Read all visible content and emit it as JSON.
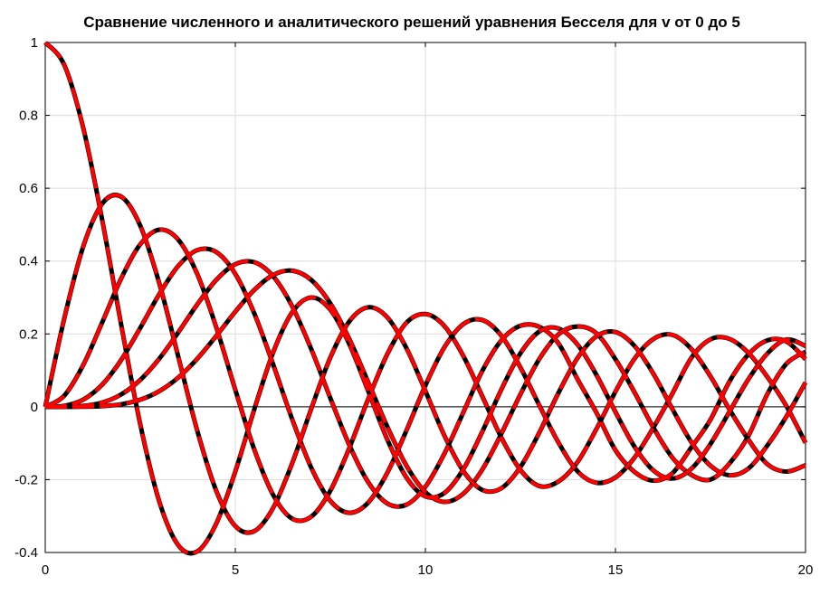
{
  "chart_data": {
    "type": "line",
    "title": "Сравнение численного и аналитического решений уравнения Бесселя для v от 0 до 5",
    "xlabel": "",
    "ylabel": "",
    "xlim": [
      0,
      20
    ],
    "ylim": [
      -0.4,
      1
    ],
    "x_ticks": [
      0,
      5,
      10,
      15,
      20
    ],
    "x_tick_labels": [
      "0",
      "5",
      "10",
      "15",
      "20"
    ],
    "y_ticks": [
      -0.4,
      -0.2,
      0,
      0.2,
      0.4,
      0.6,
      0.8,
      1
    ],
    "y_tick_labels": [
      "-0.4",
      "-0.2",
      "0",
      "0.2",
      "0.4",
      "0.6",
      "0.8",
      "1"
    ],
    "grid": true,
    "zero_line": true,
    "x_step": 0.5,
    "series_styles": {
      "numerical": {
        "color": "#000000",
        "dash": "none"
      },
      "analytical": {
        "color": "#ff0000",
        "dash": "dashed"
      }
    },
    "series": [
      {
        "order": 0,
        "x": [
          0,
          0.5,
          1,
          1.5,
          2,
          2.5,
          3,
          3.5,
          4,
          4.5,
          5,
          5.5,
          6,
          6.5,
          7,
          7.5,
          8,
          8.5,
          9,
          9.5,
          10,
          10.5,
          11,
          11.5,
          12,
          12.5,
          13,
          13.5,
          14,
          14.5,
          15,
          15.5,
          16,
          16.5,
          17,
          17.5,
          18,
          18.5,
          19,
          19.5,
          20
        ],
        "values": [
          1.0,
          0.9385,
          0.7652,
          0.5118,
          0.2239,
          -0.0484,
          -0.2601,
          -0.3801,
          -0.3971,
          -0.3205,
          -0.1776,
          -0.0068,
          0.1506,
          0.2601,
          0.3001,
          0.2663,
          0.1717,
          0.0419,
          -0.0903,
          -0.1939,
          -0.2459,
          -0.2366,
          -0.1712,
          -0.0677,
          0.0477,
          0.1469,
          0.2069,
          0.215,
          0.1711,
          0.0875,
          -0.0142,
          -0.1092,
          -0.1749,
          -0.1969,
          -0.1699,
          -0.102,
          -0.0134,
          0.0761,
          0.1466,
          0.1846,
          0.167
        ]
      },
      {
        "order": 1,
        "x": [
          0,
          0.5,
          1,
          1.5,
          2,
          2.5,
          3,
          3.5,
          4,
          4.5,
          5,
          5.5,
          6,
          6.5,
          7,
          7.5,
          8,
          8.5,
          9,
          9.5,
          10,
          10.5,
          11,
          11.5,
          12,
          12.5,
          13,
          13.5,
          14,
          14.5,
          15,
          15.5,
          16,
          16.5,
          17,
          17.5,
          18,
          18.5,
          19,
          19.5,
          20
        ],
        "values": [
          0.0,
          0.2423,
          0.4401,
          0.5579,
          0.5767,
          0.4971,
          0.3391,
          0.1374,
          -0.066,
          -0.2311,
          -0.3276,
          -0.3414,
          -0.2767,
          -0.1538,
          -0.0047,
          0.1352,
          0.2346,
          0.2731,
          0.2453,
          0.1613,
          0.0435,
          -0.0789,
          -0.1768,
          -0.2284,
          -0.2234,
          -0.1655,
          -0.0703,
          0.038,
          0.1334,
          0.1934,
          0.2051,
          0.1672,
          0.0904,
          -0.0063,
          -0.0977,
          -0.1618,
          -0.188,
          -0.1694,
          -0.1057,
          -0.0262,
          0.0668
        ]
      },
      {
        "order": 2,
        "x": [
          0,
          0.5,
          1,
          1.5,
          2,
          2.5,
          3,
          3.5,
          4,
          4.5,
          5,
          5.5,
          6,
          6.5,
          7,
          7.5,
          8,
          8.5,
          9,
          9.5,
          10,
          10.5,
          11,
          11.5,
          12,
          12.5,
          13,
          13.5,
          14,
          14.5,
          15,
          15.5,
          16,
          16.5,
          17,
          17.5,
          18,
          18.5,
          19,
          19.5,
          20
        ],
        "values": [
          0.0,
          0.0306,
          0.1149,
          0.2321,
          0.3528,
          0.4461,
          0.4861,
          0.4586,
          0.3641,
          0.2178,
          0.0466,
          -0.1173,
          -0.2429,
          -0.3074,
          -0.3014,
          -0.2303,
          -0.113,
          0.0223,
          0.1448,
          0.2306,
          0.2546,
          0.2216,
          0.139,
          0.0283,
          -0.0849,
          -0.1734,
          -0.2177,
          -0.2051,
          -0.152,
          -0.0608,
          0.0416,
          0.1316,
          0.1862,
          0.1973,
          0.1584,
          0.0835,
          -0.0075,
          -0.0906,
          -0.1577,
          -0.1778,
          -0.1603
        ]
      },
      {
        "order": 3,
        "x": [
          0,
          0.5,
          1,
          1.5,
          2,
          2.5,
          3,
          3.5,
          4,
          4.5,
          5,
          5.5,
          6,
          6.5,
          7,
          7.5,
          8,
          8.5,
          9,
          9.5,
          10,
          10.5,
          11,
          11.5,
          12,
          12.5,
          13,
          13.5,
          14,
          14.5,
          15,
          15.5,
          16,
          16.5,
          17,
          17.5,
          18,
          18.5,
          19,
          19.5,
          20
        ],
        "values": [
          0.0,
          0.0026,
          0.0196,
          0.061,
          0.1289,
          0.2166,
          0.3091,
          0.3868,
          0.4302,
          0.4247,
          0.3648,
          0.2561,
          0.1148,
          -0.0353,
          -0.1676,
          -0.2581,
          -0.2911,
          -0.2626,
          -0.1809,
          -0.0654,
          0.0584,
          0.1632,
          0.2273,
          0.2381,
          0.1951,
          0.108,
          0.0033,
          -0.098,
          -0.1768,
          -0.2085,
          -0.194,
          -0.1397,
          -0.0567,
          0.0368,
          0.1349,
          0.1853,
          0.1863,
          0.1477,
          0.0814,
          0.0015,
          -0.0989
        ]
      },
      {
        "order": 4,
        "x": [
          0,
          0.5,
          1,
          1.5,
          2,
          2.5,
          3,
          3.5,
          4,
          4.5,
          5,
          5.5,
          6,
          6.5,
          7,
          7.5,
          8,
          8.5,
          9,
          9.5,
          10,
          10.5,
          11,
          11.5,
          12,
          12.5,
          13,
          13.5,
          14,
          14.5,
          15,
          15.5,
          16,
          16.5,
          17,
          17.5,
          18,
          18.5,
          19,
          19.5,
          20
        ],
        "values": [
          0.0,
          0.0002,
          0.0025,
          0.0118,
          0.034,
          0.0738,
          0.132,
          0.2044,
          0.2811,
          0.3484,
          0.3912,
          0.3967,
          0.3576,
          0.2748,
          0.1578,
          0.0238,
          -0.1054,
          -0.2077,
          -0.2655,
          -0.2689,
          -0.2196,
          -0.1286,
          -0.015,
          0.099,
          0.1825,
          0.2224,
          0.2193,
          0.174,
          0.0762,
          -0.0162,
          -0.1192,
          -0.1785,
          -0.2026,
          -0.1821,
          -0.1111,
          -0.0353,
          0.0696,
          0.1442,
          0.1825,
          0.1791,
          0.1307
        ]
      },
      {
        "order": 5,
        "x": [
          0,
          0.5,
          1,
          1.5,
          2,
          2.5,
          3,
          3.5,
          4,
          4.5,
          5,
          5.5,
          6,
          6.5,
          7,
          7.5,
          8,
          8.5,
          9,
          9.5,
          10,
          10.5,
          11,
          11.5,
          12,
          12.5,
          13,
          13.5,
          14,
          14.5,
          15,
          15.5,
          16,
          16.5,
          17,
          17.5,
          18,
          18.5,
          19,
          19.5,
          20
        ],
        "values": [
          0.0,
          0.0,
          0.0002,
          0.0018,
          0.007,
          0.0195,
          0.043,
          0.0804,
          0.1321,
          0.1947,
          0.2611,
          0.3209,
          0.3621,
          0.3736,
          0.3479,
          0.2835,
          0.1858,
          0.0665,
          -0.055,
          -0.1613,
          -0.2341,
          -0.2611,
          -0.2383,
          -0.1717,
          -0.0735,
          0.0341,
          0.1316,
          0.1988,
          0.2204,
          0.2017,
          0.1305,
          0.04,
          -0.0575,
          -0.1398,
          -0.187,
          -0.1998,
          -0.1554,
          -0.0794,
          0.0357,
          0.1184,
          0.1512
        ]
      }
    ]
  }
}
